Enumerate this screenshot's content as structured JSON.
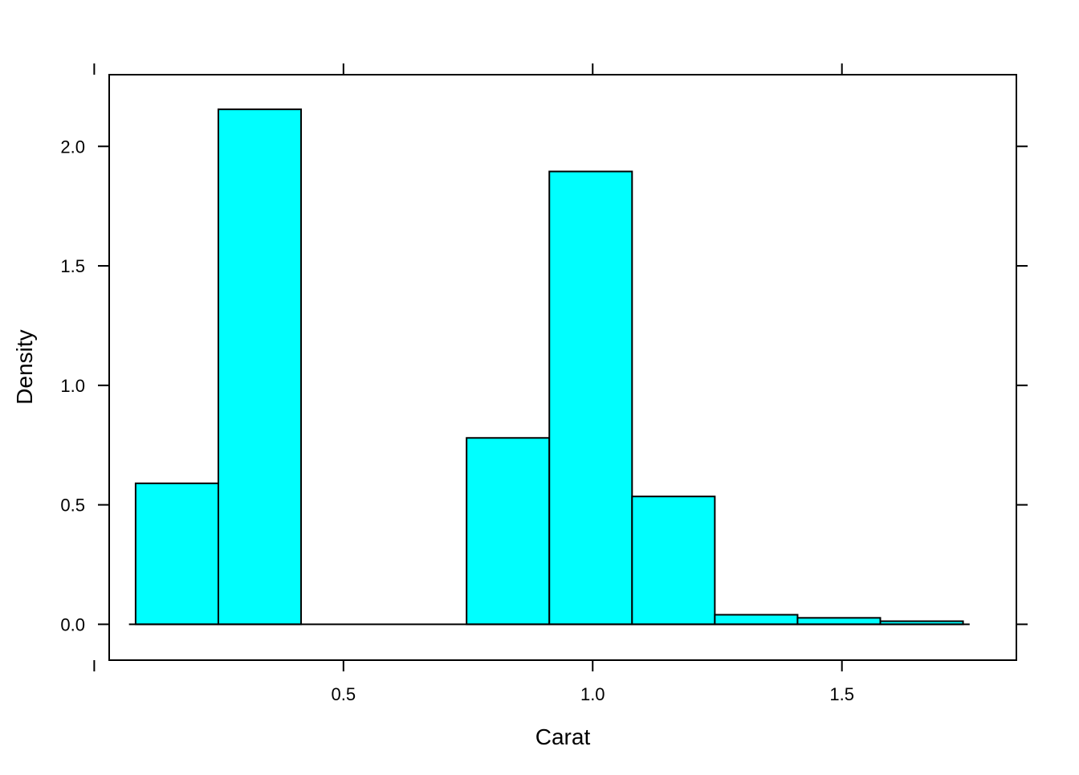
{
  "chart_data": {
    "type": "bar",
    "subtype": "histogram",
    "title": "",
    "xlabel": "Carat",
    "ylabel": "Density",
    "bins": [
      {
        "x0": 0.083,
        "x1": 0.249,
        "density": 0.59
      },
      {
        "x0": 0.249,
        "x1": 0.415,
        "density": 2.155
      },
      {
        "x0": 0.415,
        "x1": 0.581,
        "density": 0.0
      },
      {
        "x0": 0.581,
        "x1": 0.747,
        "density": 0.0
      },
      {
        "x0": 0.747,
        "x1": 0.913,
        "density": 0.78
      },
      {
        "x0": 0.913,
        "x1": 1.079,
        "density": 1.895
      },
      {
        "x0": 1.079,
        "x1": 1.245,
        "density": 0.535
      },
      {
        "x0": 1.245,
        "x1": 1.411,
        "density": 0.04
      },
      {
        "x0": 1.411,
        "x1": 1.577,
        "density": 0.027
      },
      {
        "x0": 1.577,
        "x1": 1.743,
        "density": 0.013
      }
    ],
    "xlim": [
      0.03,
      1.85
    ],
    "ylim": [
      -0.15,
      2.3
    ],
    "x_ticks": [
      {
        "value": 0.0,
        "label": ""
      },
      {
        "value": 0.5,
        "label": "0.5"
      },
      {
        "value": 1.0,
        "label": "1.0"
      },
      {
        "value": 1.5,
        "label": "1.5"
      }
    ],
    "y_ticks": [
      {
        "value": 0.0,
        "label": "0.0"
      },
      {
        "value": 0.5,
        "label": "0.5"
      },
      {
        "value": 1.0,
        "label": "1.0"
      },
      {
        "value": 1.5,
        "label": "1.5"
      },
      {
        "value": 2.0,
        "label": "2.0"
      }
    ],
    "bar_fill": "#00FFFF",
    "bar_stroke": "#000000",
    "grid": false,
    "legend": "none"
  }
}
